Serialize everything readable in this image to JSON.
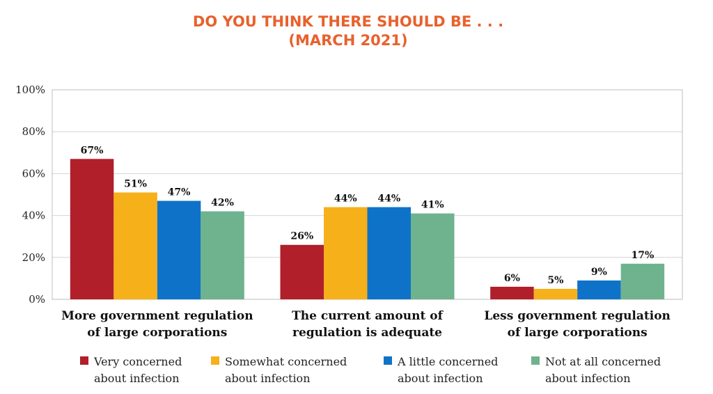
{
  "chart_data": {
    "type": "bar",
    "title": [
      "DO YOU THINK THERE SHOULD BE . . .",
      "(MARCH 2021)"
    ],
    "categories": [
      [
        "More government regulation",
        "of large corporations"
      ],
      [
        "The current amount of",
        "regulation is adequate"
      ],
      [
        "Less government regulation",
        "of large corporations"
      ]
    ],
    "series": [
      {
        "name": [
          "Very concerned",
          "about infection"
        ],
        "color": "#B01F2A",
        "values": [
          67,
          26,
          6
        ]
      },
      {
        "name": [
          "Somewhat concerned",
          "about infection"
        ],
        "color": "#F6B01A",
        "values": [
          51,
          44,
          5
        ]
      },
      {
        "name": [
          "A little concerned",
          "about infection"
        ],
        "color": "#0E73C8",
        "values": [
          47,
          44,
          9
        ]
      },
      {
        "name": [
          "Not at all concerned",
          "about infection"
        ],
        "color": "#6FB38E",
        "values": [
          42,
          41,
          17
        ]
      }
    ],
    "yticks": [
      "0%",
      "20%",
      "40%",
      "60%",
      "80%",
      "100%"
    ],
    "ylim": [
      0,
      100
    ],
    "grid": true,
    "legend_position": "bottom",
    "title_color": "#E8612C",
    "value_suffix": "%"
  }
}
